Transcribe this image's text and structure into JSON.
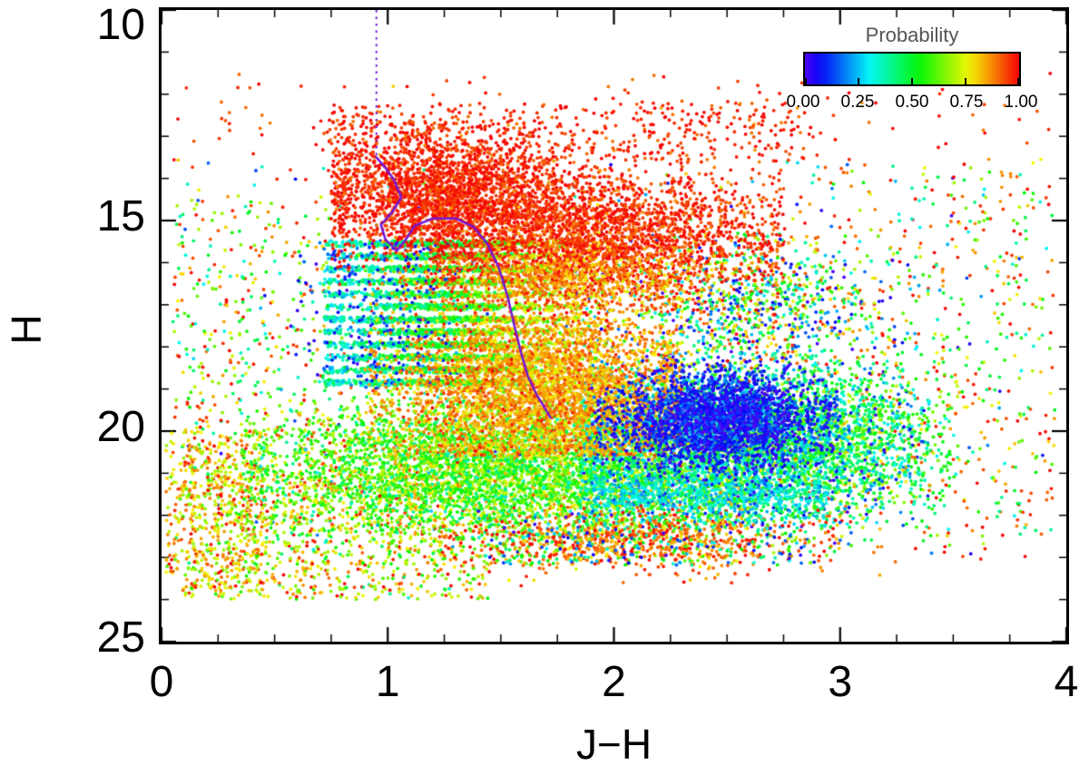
{
  "figure": {
    "background": "#ffffff",
    "frame_color": "#000000"
  },
  "chart_data": {
    "type": "scatter",
    "title": "",
    "xlabel": "J−H",
    "ylabel": "H",
    "xlim": [
      0,
      4
    ],
    "ylim": [
      10,
      25
    ],
    "y_axis_inverted_magnitude": true,
    "grid": false,
    "x_ticks": [
      "0",
      "1",
      "2",
      "3",
      "4"
    ],
    "x_tick_values": [
      0,
      1,
      2,
      3,
      4
    ],
    "y_ticks": [
      "10",
      "15",
      "20",
      "25"
    ],
    "y_tick_values": [
      10,
      15,
      20,
      25
    ],
    "x_minor_step": 0.25,
    "y_minor_step": 1,
    "seed": 12345,
    "marker": {
      "shape": "circle",
      "radius_px": 1.9
    },
    "colormap": {
      "name": "rainbow",
      "hue_start": 258,
      "hue_end": 0,
      "saturation": 97,
      "lightness": 49
    },
    "colorbar": {
      "title": "Probability",
      "position": "top-right",
      "range": [
        0,
        1
      ],
      "tick_labels": [
        "0.00",
        "0.25",
        "0.50",
        "0.75",
        "1.00"
      ],
      "tick_values": [
        0,
        0.25,
        0.5,
        0.75,
        1
      ]
    },
    "overlay_line": {
      "name": "isochrone",
      "color": "#7316d9",
      "width": 2.5,
      "dotted": {
        "x": 0.95,
        "y_from": 10,
        "y_to": 13.5
      },
      "solid_points": [
        [
          0.95,
          13.5
        ],
        [
          0.99,
          13.75
        ],
        [
          1.03,
          14.05
        ],
        [
          1.06,
          14.45
        ],
        [
          1.02,
          14.8
        ],
        [
          0.97,
          15.1
        ],
        [
          0.99,
          15.45
        ],
        [
          1.04,
          15.72
        ],
        [
          1.08,
          15.45
        ],
        [
          1.12,
          15.12
        ],
        [
          1.2,
          14.95
        ],
        [
          1.3,
          14.95
        ],
        [
          1.38,
          15.15
        ],
        [
          1.44,
          15.55
        ],
        [
          1.49,
          16.1
        ],
        [
          1.53,
          16.8
        ],
        [
          1.56,
          17.5
        ],
        [
          1.59,
          18.15
        ],
        [
          1.62,
          18.7
        ],
        [
          1.66,
          19.15
        ],
        [
          1.7,
          19.5
        ],
        [
          1.72,
          19.68
        ]
      ]
    },
    "point_clusters": [
      {
        "name": "field_mixed_sparse",
        "n": 500,
        "x": {
          "type": "uniform",
          "min": 0.1,
          "max": 3.9
        },
        "y": {
          "type": "uniform",
          "min": 13.5,
          "max": 23.0
        },
        "prob": {
          "type": "uniform",
          "min": 0,
          "max": 1
        }
      },
      {
        "name": "field_red_sparse",
        "n": 700,
        "x": {
          "type": "uniform",
          "min": 0.05,
          "max": 3.95
        },
        "y": {
          "type": "uniform",
          "min": 11.5,
          "max": 23.5
        },
        "prob": {
          "type": "gauss",
          "mean": 0.95,
          "sigma": 0.06
        }
      },
      {
        "name": "left_mid_sparse",
        "n": 280,
        "x": {
          "type": "uniform",
          "min": 0.05,
          "max": 0.75
        },
        "y": {
          "type": "uniform",
          "min": 14.5,
          "max": 20.5
        },
        "prob": {
          "type": "uniform",
          "min": 0.3,
          "max": 1
        }
      },
      {
        "name": "right_sparse",
        "n": 300,
        "x": {
          "type": "uniform",
          "min": 3.0,
          "max": 3.95
        },
        "y": {
          "type": "uniform",
          "min": 13.5,
          "max": 22.5
        },
        "prob": {
          "type": "uniform",
          "min": 0.3,
          "max": 1
        }
      },
      {
        "name": "lower_left_sparse",
        "n": 900,
        "x": {
          "type": "uniform",
          "min": 0.1,
          "max": 1.45
        },
        "y": {
          "type": "uniform",
          "min": 20.8,
          "max": 24.0
        },
        "prob": {
          "type": "gauss",
          "mean": 0.75,
          "sigma": 0.15
        }
      },
      {
        "name": "left_edge_orange",
        "n": 450,
        "x": {
          "type": "uniform",
          "min": 0.02,
          "max": 0.45
        },
        "y": {
          "type": "uniform",
          "min": 20.0,
          "max": 23.8
        },
        "prob": {
          "type": "gauss",
          "mean": 0.8,
          "sigma": 0.1
        }
      },
      {
        "name": "yellow_green_cloud",
        "n": 5200,
        "x": {
          "type": "gauss",
          "mean": 1.55,
          "sigma": 0.55,
          "min": 0.35,
          "max": 2.6
        },
        "y": {
          "type": "gauss",
          "mean": 20.9,
          "sigma": 0.85,
          "min": 18.8,
          "max": 23.2
        },
        "prob": {
          "type": "gauss",
          "mean": 0.6,
          "sigma": 0.13
        }
      },
      {
        "name": "green_right_wing",
        "n": 1400,
        "x": {
          "type": "gauss",
          "mean": 2.85,
          "sigma": 0.3,
          "min": 2.2,
          "max": 3.5
        },
        "y": {
          "type": "gauss",
          "mean": 20.3,
          "sigma": 0.9
        },
        "prob": {
          "type": "gauss",
          "mean": 0.55,
          "sigma": 0.12
        }
      },
      {
        "name": "cyan_green_right",
        "n": 3200,
        "x": {
          "type": "gauss",
          "mean": 2.5,
          "sigma": 0.42,
          "min": 1.85,
          "max": 3.4
        },
        "y": {
          "type": "gauss",
          "mean": 20.2,
          "sigma": 0.95,
          "min": 17.5,
          "max": 22.3
        },
        "prob": {
          "type": "gauss",
          "mean": 0.35,
          "sigma": 0.18
        }
      },
      {
        "name": "cyan_band_bottom",
        "n": 600,
        "x": {
          "type": "uniform",
          "min": 1.9,
          "max": 2.95
        },
        "y": {
          "type": "gauss",
          "mean": 21.5,
          "sigma": 0.25
        },
        "prob": {
          "type": "gauss",
          "mean": 0.3,
          "sigma": 0.08
        }
      },
      {
        "name": "right_mid_mixed",
        "n": 900,
        "x": {
          "type": "gauss",
          "mean": 2.6,
          "sigma": 0.3
        },
        "y": {
          "type": "gauss",
          "mean": 17.0,
          "sigma": 0.8,
          "min": 15.3,
          "max": 18.6
        },
        "prob": {
          "type": "uniform",
          "min": 0,
          "max": 1
        }
      },
      {
        "name": "striped_bands",
        "n": 4200,
        "x": {
          "type": "gauss",
          "mean": 1.25,
          "sigma": 0.3,
          "min": 0.72,
          "max": 2.0
        },
        "y": {
          "type": "bands",
          "values": [
            15.55,
            15.85,
            16.15,
            16.45,
            16.75,
            17.05,
            17.35,
            17.65,
            17.95,
            18.25,
            18.55,
            18.85
          ],
          "jitter": 0.07
        },
        "prob": {
          "type": "xlinear",
          "x0": 0.72,
          "x1": 2.0,
          "p0": 0.33,
          "p1": 0.8,
          "noise": 0.18
        }
      },
      {
        "name": "blue_sprinkle_left",
        "n": 260,
        "x": {
          "type": "gauss",
          "mean": 1.0,
          "sigma": 0.18
        },
        "y": {
          "type": "uniform",
          "min": 15.5,
          "max": 19.0
        },
        "prob": {
          "type": "gauss",
          "mean": 0.1,
          "sigma": 0.08
        }
      },
      {
        "name": "red_top_scatter",
        "n": 400,
        "x": {
          "type": "uniform",
          "min": 0.7,
          "max": 2.9
        },
        "y": {
          "type": "uniform",
          "min": 12.2,
          "max": 13.6
        },
        "prob": {
          "type": "gauss",
          "mean": 0.97,
          "sigma": 0.04
        }
      },
      {
        "name": "red_band_left",
        "n": 2600,
        "x": {
          "type": "gauss",
          "mean": 1.25,
          "sigma": 0.28,
          "min": 0.75,
          "max": 2.1
        },
        "y": {
          "type": "gauss",
          "mean": 14.4,
          "sigma": 0.75,
          "min": 12.6,
          "max": 16.6
        },
        "prob": {
          "type": "gauss",
          "mean": 0.97,
          "sigma": 0.04
        }
      },
      {
        "name": "red_band_right",
        "n": 2600,
        "x": {
          "type": "gauss",
          "mean": 1.95,
          "sigma": 0.38,
          "min": 1.2,
          "max": 2.75
        },
        "y": {
          "type": "gauss",
          "mean": 15.4,
          "sigma": 0.75,
          "min": 13.2,
          "max": 17.2
        },
        "prob": {
          "type": "gauss",
          "mean": 0.96,
          "sigma": 0.05
        }
      },
      {
        "name": "orange_band_upper",
        "n": 700,
        "x": {
          "type": "gauss",
          "mean": 1.75,
          "sigma": 0.35
        },
        "y": {
          "type": "gauss",
          "mean": 16.35,
          "sigma": 0.35
        },
        "prob": {
          "type": "gauss",
          "mean": 0.85,
          "sigma": 0.06
        }
      },
      {
        "name": "orange_core",
        "n": 3600,
        "x": {
          "type": "gauss",
          "mean": 1.68,
          "sigma": 0.33,
          "min": 0.9,
          "max": 2.3
        },
        "y": {
          "type": "gauss",
          "mean": 19.0,
          "sigma": 0.95,
          "min": 15.8,
          "max": 20.6
        },
        "prob": {
          "type": "gauss",
          "mean": 0.85,
          "sigma": 0.06
        }
      },
      {
        "name": "blue_cluster",
        "n": 2300,
        "x": {
          "type": "gauss",
          "mean": 2.45,
          "sigma": 0.22,
          "min": 1.9,
          "max": 3.0
        },
        "y": {
          "type": "gauss",
          "mean": 19.7,
          "sigma": 0.55,
          "min": 18.2,
          "max": 21.3
        },
        "prob": {
          "type": "gauss",
          "mean": 0.07,
          "sigma": 0.07
        }
      },
      {
        "name": "bottom_band_red",
        "n": 800,
        "x": {
          "type": "gauss",
          "mean": 2.05,
          "sigma": 0.4,
          "min": 1.2,
          "max": 3.0
        },
        "y": {
          "type": "gauss",
          "mean": 22.6,
          "sigma": 0.35
        },
        "prob": {
          "type": "gauss",
          "mean": 0.9,
          "sigma": 0.08
        }
      },
      {
        "name": "bottom_band_mixed",
        "n": 300,
        "x": {
          "type": "uniform",
          "min": 1.4,
          "max": 2.9
        },
        "y": {
          "type": "uniform",
          "min": 21.9,
          "max": 23.2
        },
        "prob": {
          "type": "uniform",
          "min": 0,
          "max": 0.7
        }
      }
    ]
  }
}
